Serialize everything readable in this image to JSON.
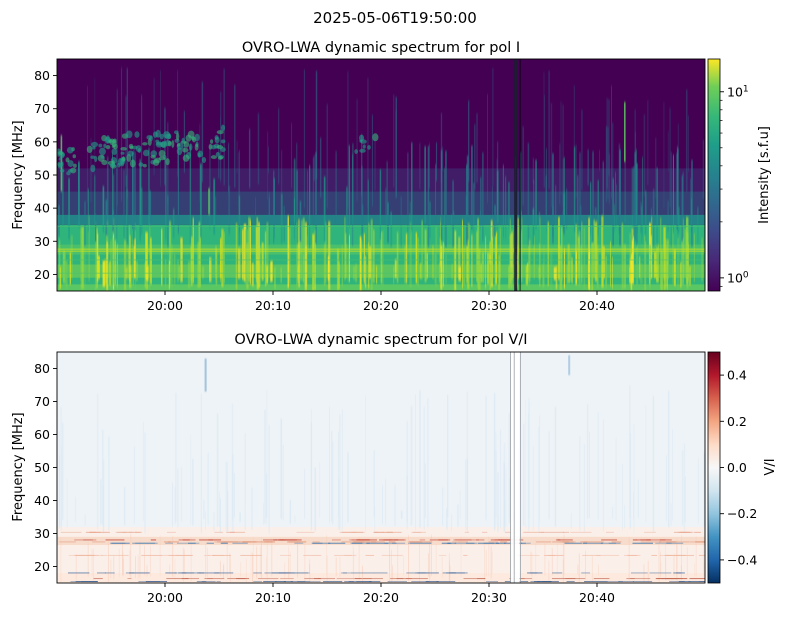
{
  "figure": {
    "suptitle": "2025-05-06T19:50:00"
  },
  "chart_data": [
    {
      "type": "heatmap",
      "title": "OVRO-LWA dynamic spectrum for pol I",
      "xlabel": "",
      "ylabel": "Frequency [MHz]",
      "x_time_range": [
        "19:50:00",
        "20:50:00"
      ],
      "x_ticks": [
        "20:00",
        "20:10",
        "20:20",
        "20:30",
        "20:40"
      ],
      "ylim": [
        15,
        85
      ],
      "y_ticks": [
        20,
        30,
        40,
        50,
        60,
        70,
        80
      ],
      "colormap": "viridis",
      "colorbar": {
        "label": "Intensity [s.f.u]",
        "scale": "log",
        "range": [
          0.85,
          15
        ],
        "major_ticks": [
          {
            "value": 1,
            "label": "10^0"
          },
          {
            "value": 10,
            "label": "10^1"
          }
        ]
      }
    },
    {
      "type": "heatmap",
      "title": "OVRO-LWA dynamic spectrum for pol V/I",
      "xlabel": "",
      "ylabel": "Frequency [MHz]",
      "x_time_range": [
        "19:50:00",
        "20:50:00"
      ],
      "x_ticks": [
        "20:00",
        "20:10",
        "20:20",
        "20:30",
        "20:40"
      ],
      "ylim": [
        15,
        85
      ],
      "y_ticks": [
        20,
        30,
        40,
        50,
        60,
        70,
        80
      ],
      "colormap": "RdBu_r",
      "colorbar": {
        "label": "V/I",
        "scale": "linear",
        "range": [
          -0.5,
          0.5
        ],
        "ticks": [
          -0.4,
          -0.2,
          0.0,
          0.2,
          0.4
        ],
        "tick_labels": [
          "−0.4",
          "−0.2",
          "0.0",
          "0.2",
          "0.4"
        ]
      }
    }
  ]
}
